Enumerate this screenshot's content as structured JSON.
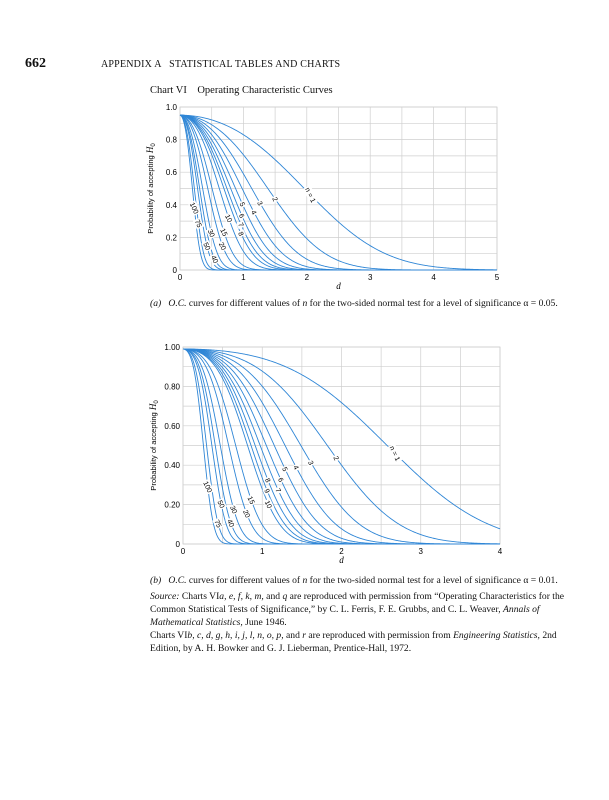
{
  "header": {
    "page_number": "662",
    "running_head": "APPENDIX A   STATISTICAL TABLES AND CHARTS"
  },
  "chart_title": "Chart VI    Operating Characteristic Curves",
  "captions": {
    "a_prefix": "(a)",
    "a_oc": "O.C.",
    "a_text1": " curves for different values of ",
    "a_n": "n",
    "a_text2": " for the two-sided normal test for a level of significance α = 0.05.",
    "b_prefix": "(b)",
    "b_oc": "O.C.",
    "b_text1": " curves for different values of ",
    "b_n": "n",
    "b_text2": " for the two-sided normal test for a level of significance α = 0.01."
  },
  "source": {
    "label": "Source:",
    "l1a": " Charts VI",
    "l1b": "a, e, f, k, m,",
    "l1c": " and ",
    "l1d": "q",
    "l1e": " are reproduced with permission from “Operating Characteristics for the Common Statistical Tests of Significance,” by C. L. Ferris, F. E. Grubbs, and C. L. Weaver, ",
    "journal": "Annals of Mathematical Statistics,",
    "l1f": " June 1946.",
    "l2a": "Charts VI",
    "l2b": "b, c, d, g, h, i, j, l, n, o, p,",
    "l2c": " and ",
    "l2d": "r",
    "l2e": " are reproduced with permission from ",
    "book": "Engineering Statistics,",
    "l2f": " 2nd Edition, by A. H. Bowker and G. J. Lieberman, Prentice-Hall, 1972."
  },
  "colors": {
    "curve": "#2f86d6",
    "grid": "#cfcfcf",
    "axis": "#999999"
  },
  "chart_data": [
    {
      "type": "line",
      "title": "(a) O.C. curves, two-sided normal test, α = 0.05",
      "alpha": 0.05,
      "model": "beta(d) = Φ(z_{α/2} − d√n) − Φ(−z_{α/2} − d√n)",
      "xlabel": "d",
      "ylabel_text": "Probability of accepting ",
      "ylabel_var": "H",
      "ylabel_sub": "0",
      "xlim": [
        0,
        5
      ],
      "ylim": [
        0,
        1
      ],
      "xticks": [
        "0",
        "1",
        "2",
        "3",
        "4",
        "5"
      ],
      "yticks": [
        "0",
        "0.2",
        "0.4",
        "0.6",
        "0.8",
        "1.0"
      ],
      "grid": true,
      "series": [
        {
          "name": "n = 1",
          "n": 1
        },
        {
          "name": "2",
          "n": 2
        },
        {
          "name": "3",
          "n": 3
        },
        {
          "name": "4",
          "n": 4
        },
        {
          "name": "5",
          "n": 5
        },
        {
          "name": "6",
          "n": 6
        },
        {
          "name": "7",
          "n": 7
        },
        {
          "name": "8",
          "n": 8
        },
        {
          "name": "10",
          "n": 10
        },
        {
          "name": "15",
          "n": 15
        },
        {
          "name": "20",
          "n": 20
        },
        {
          "name": "30",
          "n": 30
        },
        {
          "name": "40",
          "n": 40
        },
        {
          "name": "50",
          "n": 50
        },
        {
          "name": "75",
          "n": 75
        },
        {
          "name": "100",
          "n": 100
        }
      ]
    },
    {
      "type": "line",
      "title": "(b) O.C. curves, two-sided normal test, α = 0.01",
      "alpha": 0.01,
      "model": "beta(d) = Φ(z_{α/2} − d√n) − Φ(−z_{α/2} − d√n)",
      "xlabel": "d",
      "ylabel_text": "Probability of accepting ",
      "ylabel_var": "H",
      "ylabel_sub": "0",
      "xlim": [
        0,
        4
      ],
      "ylim": [
        0,
        1
      ],
      "xticks": [
        "0",
        "1",
        "2",
        "3",
        "4"
      ],
      "yticks": [
        "0",
        "0.20",
        "0.40",
        "0.60",
        "0.80",
        "1.00"
      ],
      "grid": true,
      "series": [
        {
          "name": "n = 1",
          "n": 1
        },
        {
          "name": "2",
          "n": 2
        },
        {
          "name": "3",
          "n": 3
        },
        {
          "name": "4",
          "n": 4
        },
        {
          "name": "5",
          "n": 5
        },
        {
          "name": "6",
          "n": 6
        },
        {
          "name": "7",
          "n": 7
        },
        {
          "name": "8",
          "n": 8
        },
        {
          "name": "9",
          "n": 9
        },
        {
          "name": "10",
          "n": 10
        },
        {
          "name": "15",
          "n": 15
        },
        {
          "name": "20",
          "n": 20
        },
        {
          "name": "30",
          "n": 30
        },
        {
          "name": "40",
          "n": 40
        },
        {
          "name": "50",
          "n": 50
        },
        {
          "name": "75",
          "n": 75
        },
        {
          "name": "100",
          "n": 100
        }
      ]
    }
  ]
}
